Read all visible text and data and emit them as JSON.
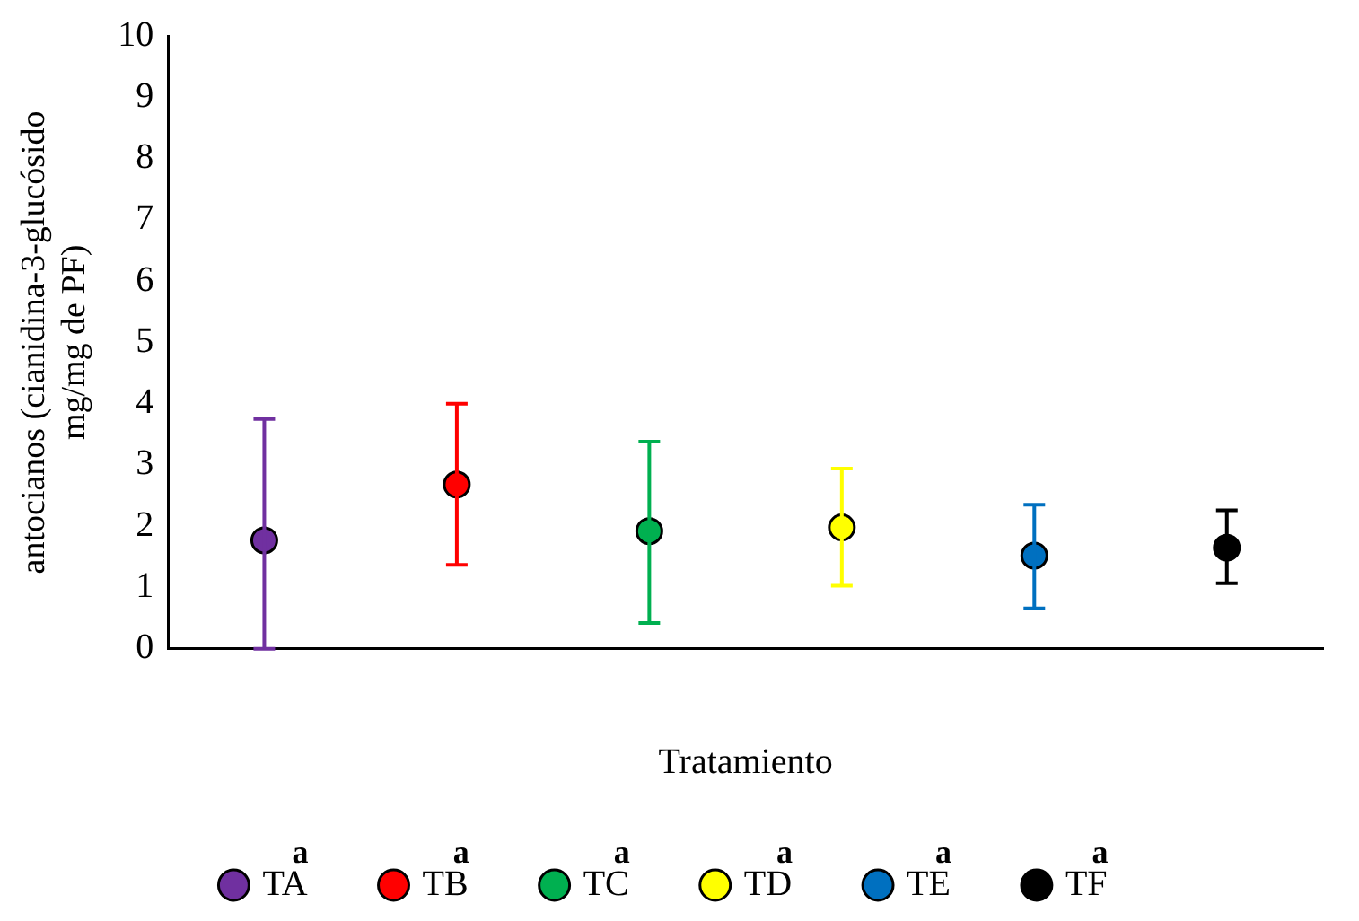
{
  "chart_data": {
    "type": "scatter",
    "xlabel": "Tratamiento",
    "ylabel": "antocianos (cianidina-3-glucósido mg/mg de PF)",
    "categories": [
      null,
      null,
      null,
      null,
      null,
      null
    ],
    "series": [
      {
        "name": "TA",
        "color": "#7030a0",
        "values": [
          1.77,
          null,
          null,
          null,
          null,
          null
        ],
        "errors": [
          [
            0,
            3.75
          ],
          null,
          null,
          null,
          null,
          null
        ]
      },
      {
        "name": "TB",
        "color": "#ff0000",
        "values": [
          null,
          2.68,
          null,
          null,
          null,
          null
        ],
        "errors": [
          null,
          [
            1.37,
            4.0
          ],
          null,
          null,
          null,
          null
        ]
      },
      {
        "name": "TC",
        "color": "#00b050",
        "values": [
          null,
          null,
          1.92,
          null,
          null,
          null
        ],
        "errors": [
          null,
          null,
          [
            0.42,
            3.38
          ],
          null,
          null,
          null
        ]
      },
      {
        "name": "TD",
        "color": "#ffff00",
        "values": [
          null,
          null,
          null,
          1.98,
          null,
          null
        ],
        "errors": [
          null,
          null,
          null,
          [
            1.03,
            2.94
          ],
          null,
          null
        ]
      },
      {
        "name": "TE",
        "color": "#0070c0",
        "values": [
          null,
          null,
          null,
          null,
          1.52,
          null
        ],
        "errors": [
          null,
          null,
          null,
          null,
          [
            0.66,
            2.35
          ],
          null
        ]
      },
      {
        "name": "TF",
        "color": "#000000",
        "values": [
          null,
          null,
          null,
          null,
          null,
          1.65
        ],
        "errors": [
          null,
          null,
          null,
          null,
          null,
          [
            1.07,
            2.26
          ]
        ]
      }
    ],
    "ylim": [
      0,
      10
    ],
    "yticks": [
      0,
      1,
      2,
      3,
      4,
      5,
      6,
      7,
      8,
      9,
      10
    ],
    "annotations": [
      "a",
      "a",
      "a",
      "a",
      "a",
      "a"
    ],
    "legend": "bottom",
    "marker": "circle",
    "grid": false
  }
}
